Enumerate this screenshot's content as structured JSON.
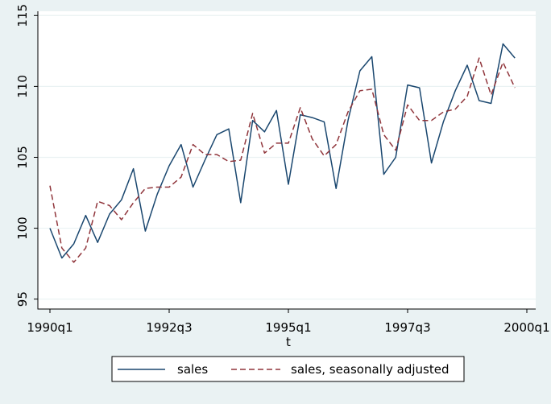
{
  "chart_data": {
    "type": "line",
    "title": "",
    "xlabel": "t",
    "ylabel": "",
    "x": [
      "1990q1",
      "1990q2",
      "1990q3",
      "1990q4",
      "1991q1",
      "1991q2",
      "1991q3",
      "1991q4",
      "1992q1",
      "1992q2",
      "1992q3",
      "1992q4",
      "1993q1",
      "1993q2",
      "1993q3",
      "1993q4",
      "1994q1",
      "1994q2",
      "1994q3",
      "1994q4",
      "1995q1",
      "1995q2",
      "1995q3",
      "1995q4",
      "1996q1",
      "1996q2",
      "1996q3",
      "1996q4",
      "1997q1",
      "1997q2",
      "1997q3",
      "1997q4",
      "1998q1",
      "1998q2",
      "1998q3",
      "1998q4",
      "1999q1",
      "1999q2",
      "1999q3",
      "1999q4"
    ],
    "x_ticks": [
      "1990q1",
      "1992q3",
      "1995q1",
      "1997q3",
      "2000q1"
    ],
    "y_ticks": [
      95,
      100,
      105,
      110,
      115
    ],
    "ylim": [
      94.3,
      115.3
    ],
    "xlim": [
      "1990q1",
      "2000q1"
    ],
    "grid": true,
    "legend_position": "bottom",
    "series": [
      {
        "name": "sales",
        "color": "#1a476f",
        "dash": "solid",
        "values": [
          100.0,
          97.9,
          98.9,
          100.9,
          99.0,
          101.0,
          102.0,
          104.2,
          99.8,
          102.4,
          104.4,
          105.9,
          102.9,
          104.8,
          106.6,
          107.0,
          101.8,
          107.6,
          106.8,
          108.3,
          103.1,
          108.0,
          107.8,
          107.5,
          102.8,
          107.6,
          111.1,
          112.1,
          103.8,
          105.0,
          110.1,
          109.9,
          104.6,
          107.5,
          109.7,
          111.5,
          109.0,
          108.8,
          113.0,
          112.0
        ]
      },
      {
        "name": "sales, seasonally adjusted",
        "color": "#90353b",
        "dash": "dashed",
        "values": [
          103.0,
          98.6,
          97.6,
          98.6,
          101.9,
          101.6,
          100.6,
          101.8,
          102.8,
          102.9,
          102.9,
          103.6,
          105.9,
          105.2,
          105.2,
          104.7,
          104.8,
          108.1,
          105.3,
          106.0,
          106.0,
          108.5,
          106.3,
          105.1,
          105.9,
          108.2,
          109.7,
          109.8,
          106.6,
          105.5,
          108.7,
          107.6,
          107.6,
          108.2,
          108.4,
          109.3,
          112.0,
          109.4,
          111.7,
          109.9
        ]
      }
    ]
  }
}
